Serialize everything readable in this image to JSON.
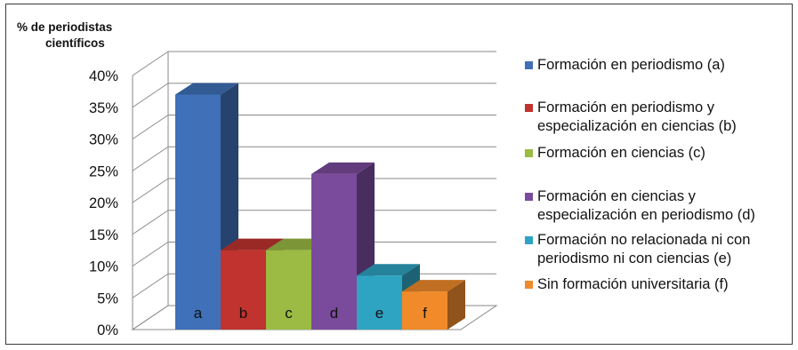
{
  "chart_data": {
    "type": "bar",
    "ylabel": "% de periodistas\ncientíficos",
    "ylim": [
      0,
      40
    ],
    "y_ticks": [
      "0%",
      "5%",
      "10%",
      "15%",
      "20%",
      "25%",
      "30%",
      "35%",
      "40%"
    ],
    "grid": true,
    "legend_position": "right",
    "categories": [
      "a",
      "b",
      "c",
      "d",
      "e",
      "f"
    ],
    "values": [
      37,
      12.5,
      12.5,
      24.5,
      8.5,
      6
    ],
    "legend": [
      "Formación en periodismo (a)",
      "Formación en periodismo y\nespecialización en ciencias (b)",
      "Formación en ciencias (c)",
      "Formación en ciencias y\nespecialización en periodismo (d)",
      "Formación no relacionada ni con\nperiodismo ni con ciencias (e)",
      "Sin formación universitaria (f)"
    ],
    "colors": [
      "#3f70b8",
      "#c0332f",
      "#9bbb45",
      "#7a4b9c",
      "#2ea3c2",
      "#f08a2a"
    ]
  }
}
